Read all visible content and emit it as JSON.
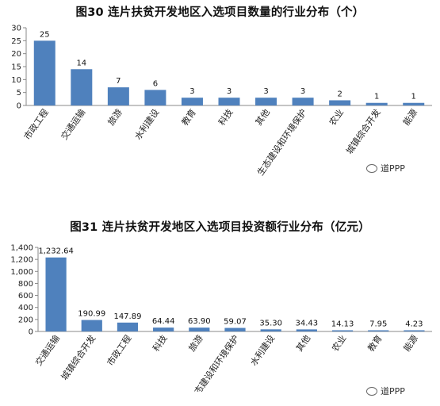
{
  "chart_data": [
    {
      "type": "bar",
      "title": "图30 连片扶贫开发地区入选项目数量的行业分布（个）",
      "categories": [
        "市政工程",
        "交通运输",
        "旅游",
        "水利建设",
        "教育",
        "科技",
        "其他",
        "生态建设和环境保护",
        "农业",
        "城镇综合开发",
        "能源"
      ],
      "values": [
        25,
        14,
        7,
        6,
        3,
        3,
        3,
        3,
        2,
        1,
        1
      ],
      "value_labels": [
        "25",
        "14",
        "7",
        "6",
        "3",
        "3",
        "3",
        "3",
        "2",
        "1",
        "1"
      ],
      "yticks": [
        "0",
        "5",
        "10",
        "15",
        "20",
        "25",
        "30"
      ],
      "ylim": [
        0,
        30
      ],
      "xlabel": "",
      "ylabel": "",
      "grid": false,
      "bar_color": "#4f81bd"
    },
    {
      "type": "bar",
      "title": "图31 连片扶贫开发地区入选项目投资额行业分布（亿元）",
      "categories": [
        "交通运输",
        "城镇综合开发",
        "市政工程",
        "科技",
        "旅游",
        "生态建设和环境保护",
        "水利建设",
        "其他",
        "农业",
        "教育",
        "能源"
      ],
      "values": [
        1232.64,
        190.99,
        147.89,
        64.44,
        63.9,
        59.07,
        35.3,
        34.43,
        14.13,
        7.95,
        4.23
      ],
      "value_labels": [
        "1,232.64",
        "190.99",
        "147.89",
        "64.44",
        "63.90",
        "59.07",
        "35.30",
        "34.43",
        "14.13",
        "7.95",
        "4.23"
      ],
      "yticks": [
        "0",
        "200",
        "400",
        "600",
        "800",
        "1,000",
        "1,200",
        "1,400"
      ],
      "ylim": [
        0,
        1400
      ],
      "xlabel": "",
      "ylabel": "",
      "grid": false,
      "bar_color": "#4f81bd"
    }
  ],
  "watermarks": [
    "道PPP",
    "道PPP"
  ]
}
